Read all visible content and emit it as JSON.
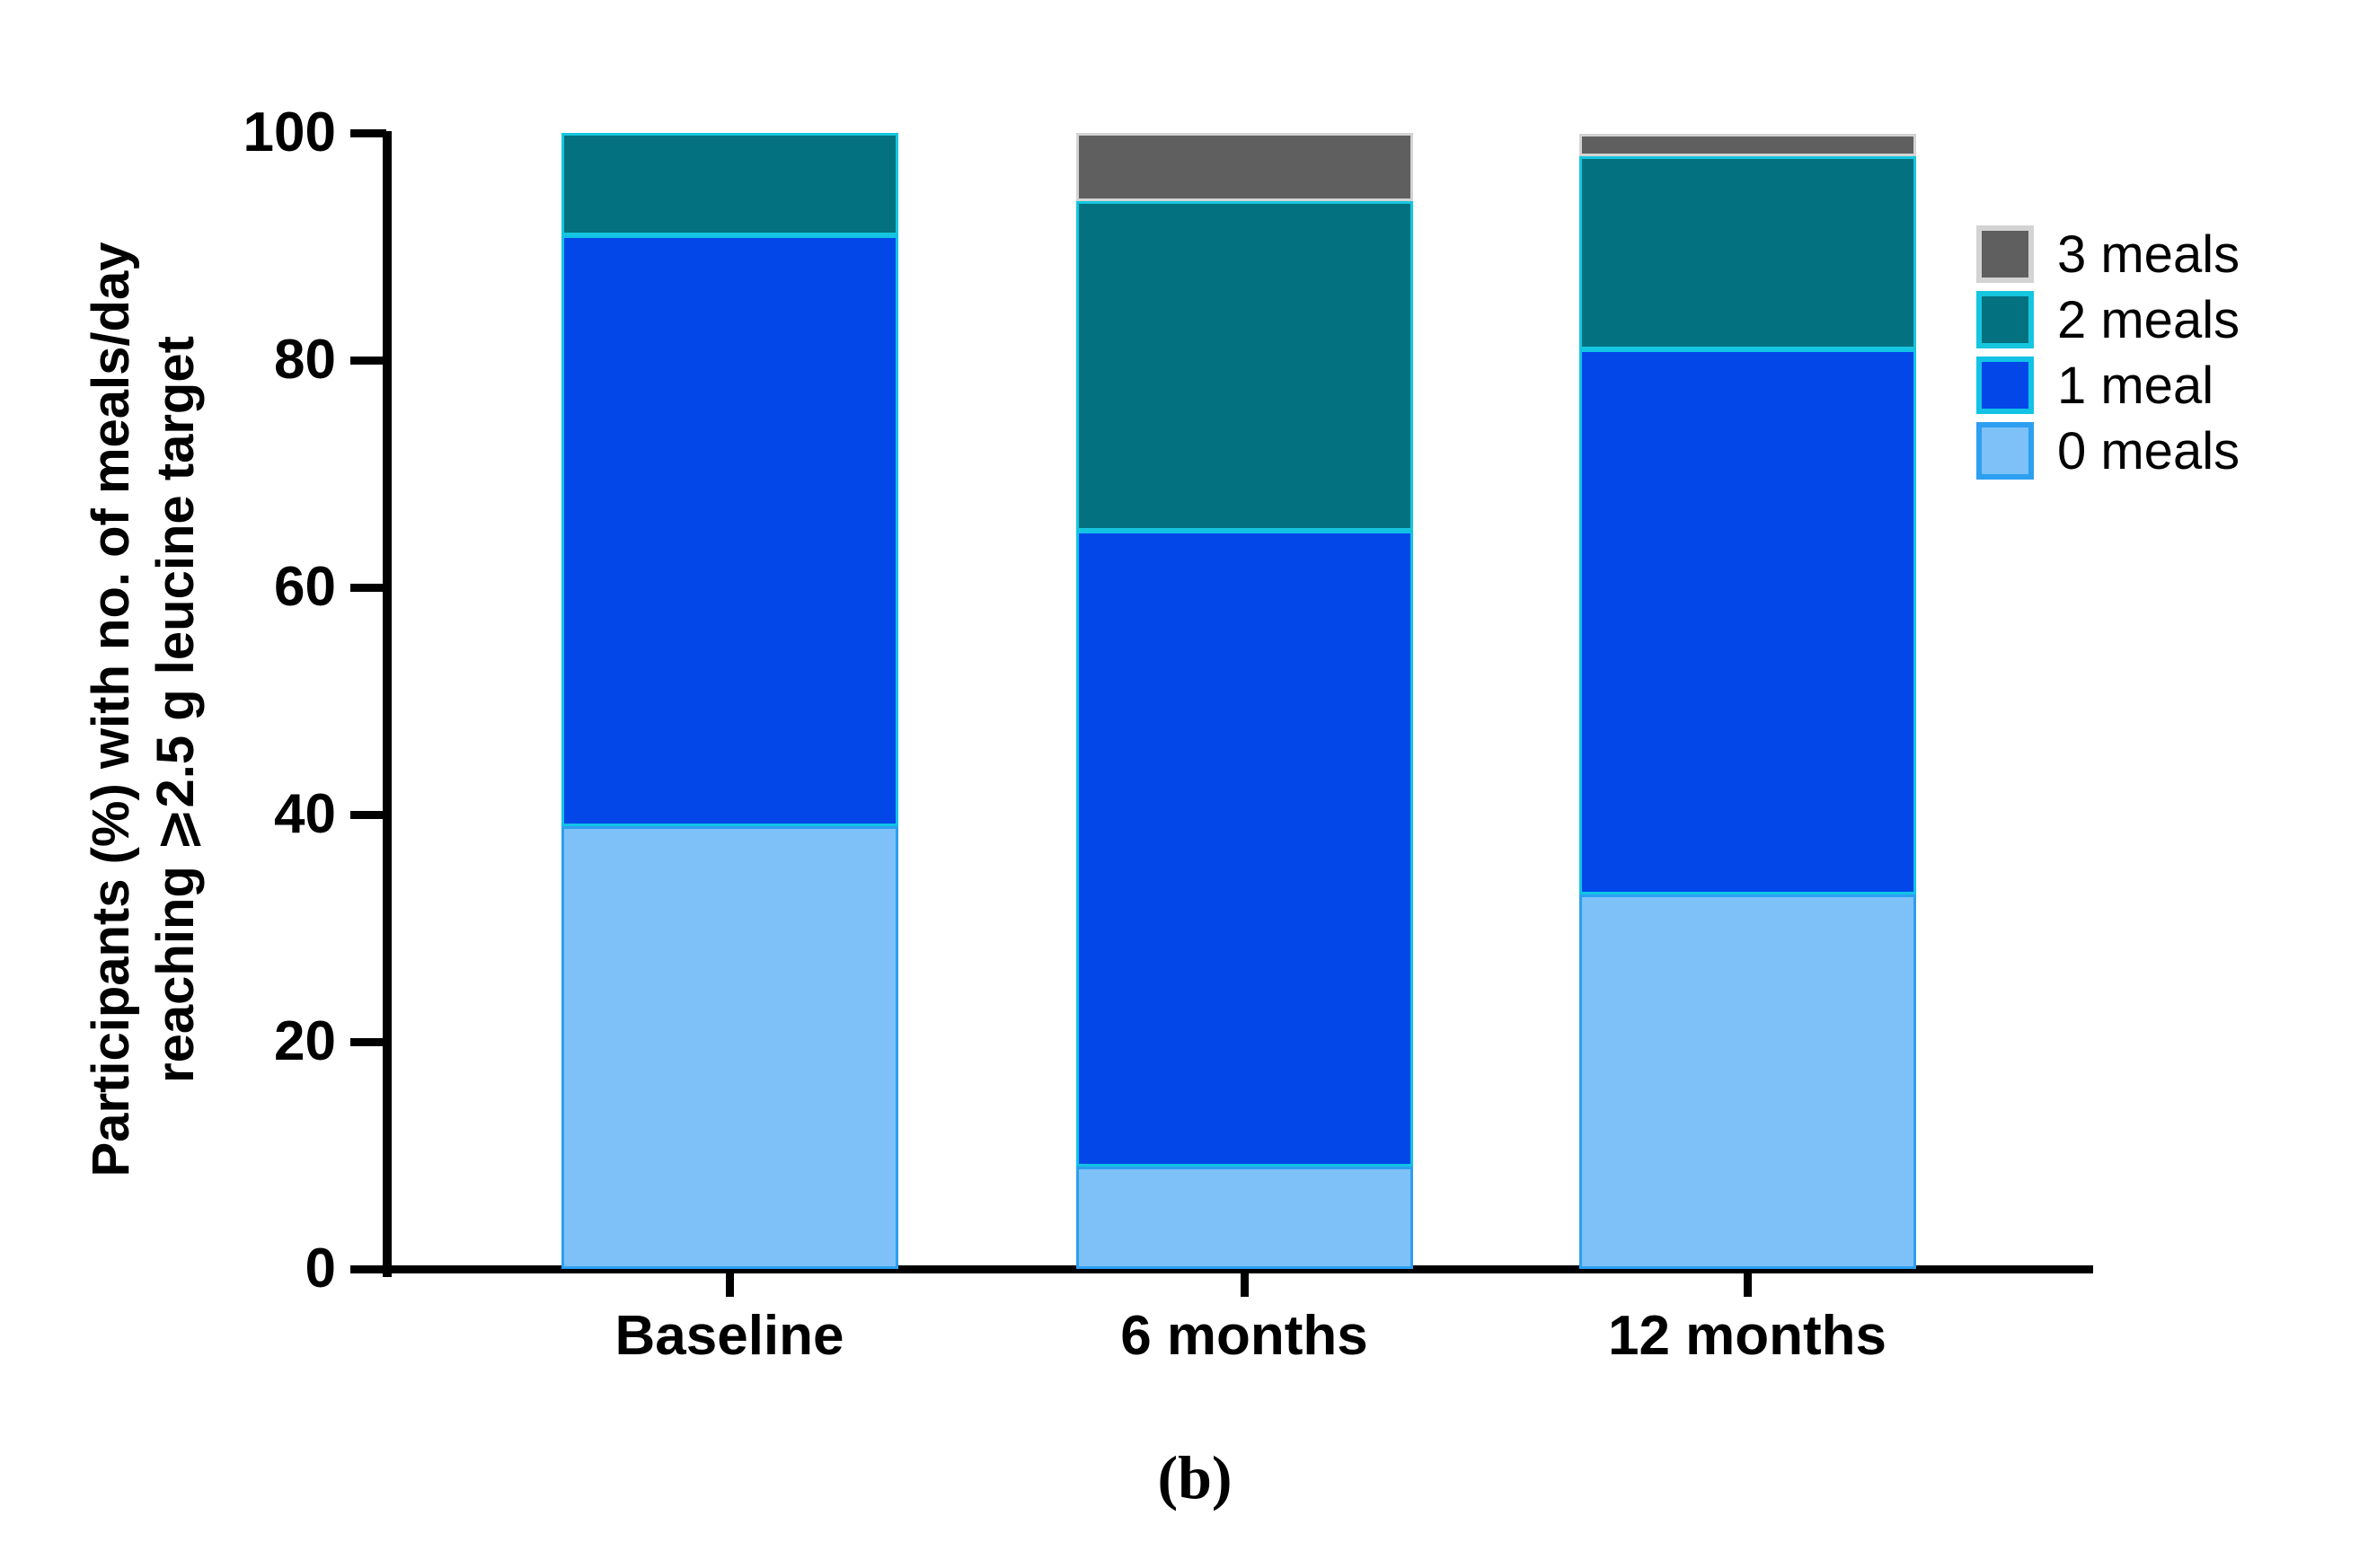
{
  "figure": {
    "caption": "(b)",
    "background_color": "#ffffff",
    "axis_color": "#000000"
  },
  "y_axis": {
    "title_line1": "Participants (%) with no. of meals/day",
    "title_line2": "reaching ⩾2.5 g leucine target",
    "ticks": [
      0,
      20,
      40,
      60,
      80,
      100
    ]
  },
  "x_axis": {
    "categories": [
      "Baseline",
      "6 months",
      "12 months"
    ]
  },
  "legend": {
    "items": [
      {
        "label": "3 meals",
        "color": "#5f5f5f",
        "border": "#d3d3d3"
      },
      {
        "label": "2 meals",
        "color": "#03717f",
        "border": "#16c6de"
      },
      {
        "label": "1 meal",
        "color": "#0347e8",
        "border": "#12c3e6"
      },
      {
        "label": "0 meals",
        "color": "#7dc1f8",
        "border": "#2d9ff0"
      }
    ]
  },
  "chart_data": {
    "type": "bar",
    "subtype": "stacked",
    "title": "",
    "xlabel": "",
    "ylabel": "Participants (%) with no. of meals/day reaching ⩾2.5 g leucine target",
    "ylim": [
      0,
      100
    ],
    "grid": false,
    "legend_position": "upper right",
    "categories": [
      "Baseline",
      "6 months",
      "12 months"
    ],
    "series": [
      {
        "name": "0 meals",
        "color": "#7dc1f8",
        "border": "#2d9ff0",
        "values": [
          39,
          9,
          33
        ]
      },
      {
        "name": "1 meal",
        "color": "#0347e8",
        "border": "#12c3e6",
        "values": [
          52,
          56,
          48
        ]
      },
      {
        "name": "2 meals",
        "color": "#03717f",
        "border": "#16c6de",
        "values": [
          9,
          29,
          17
        ]
      },
      {
        "name": "3 meals",
        "color": "#5f5f5f",
        "border": "#d3d3d3",
        "values": [
          0,
          6,
          2
        ]
      }
    ]
  }
}
